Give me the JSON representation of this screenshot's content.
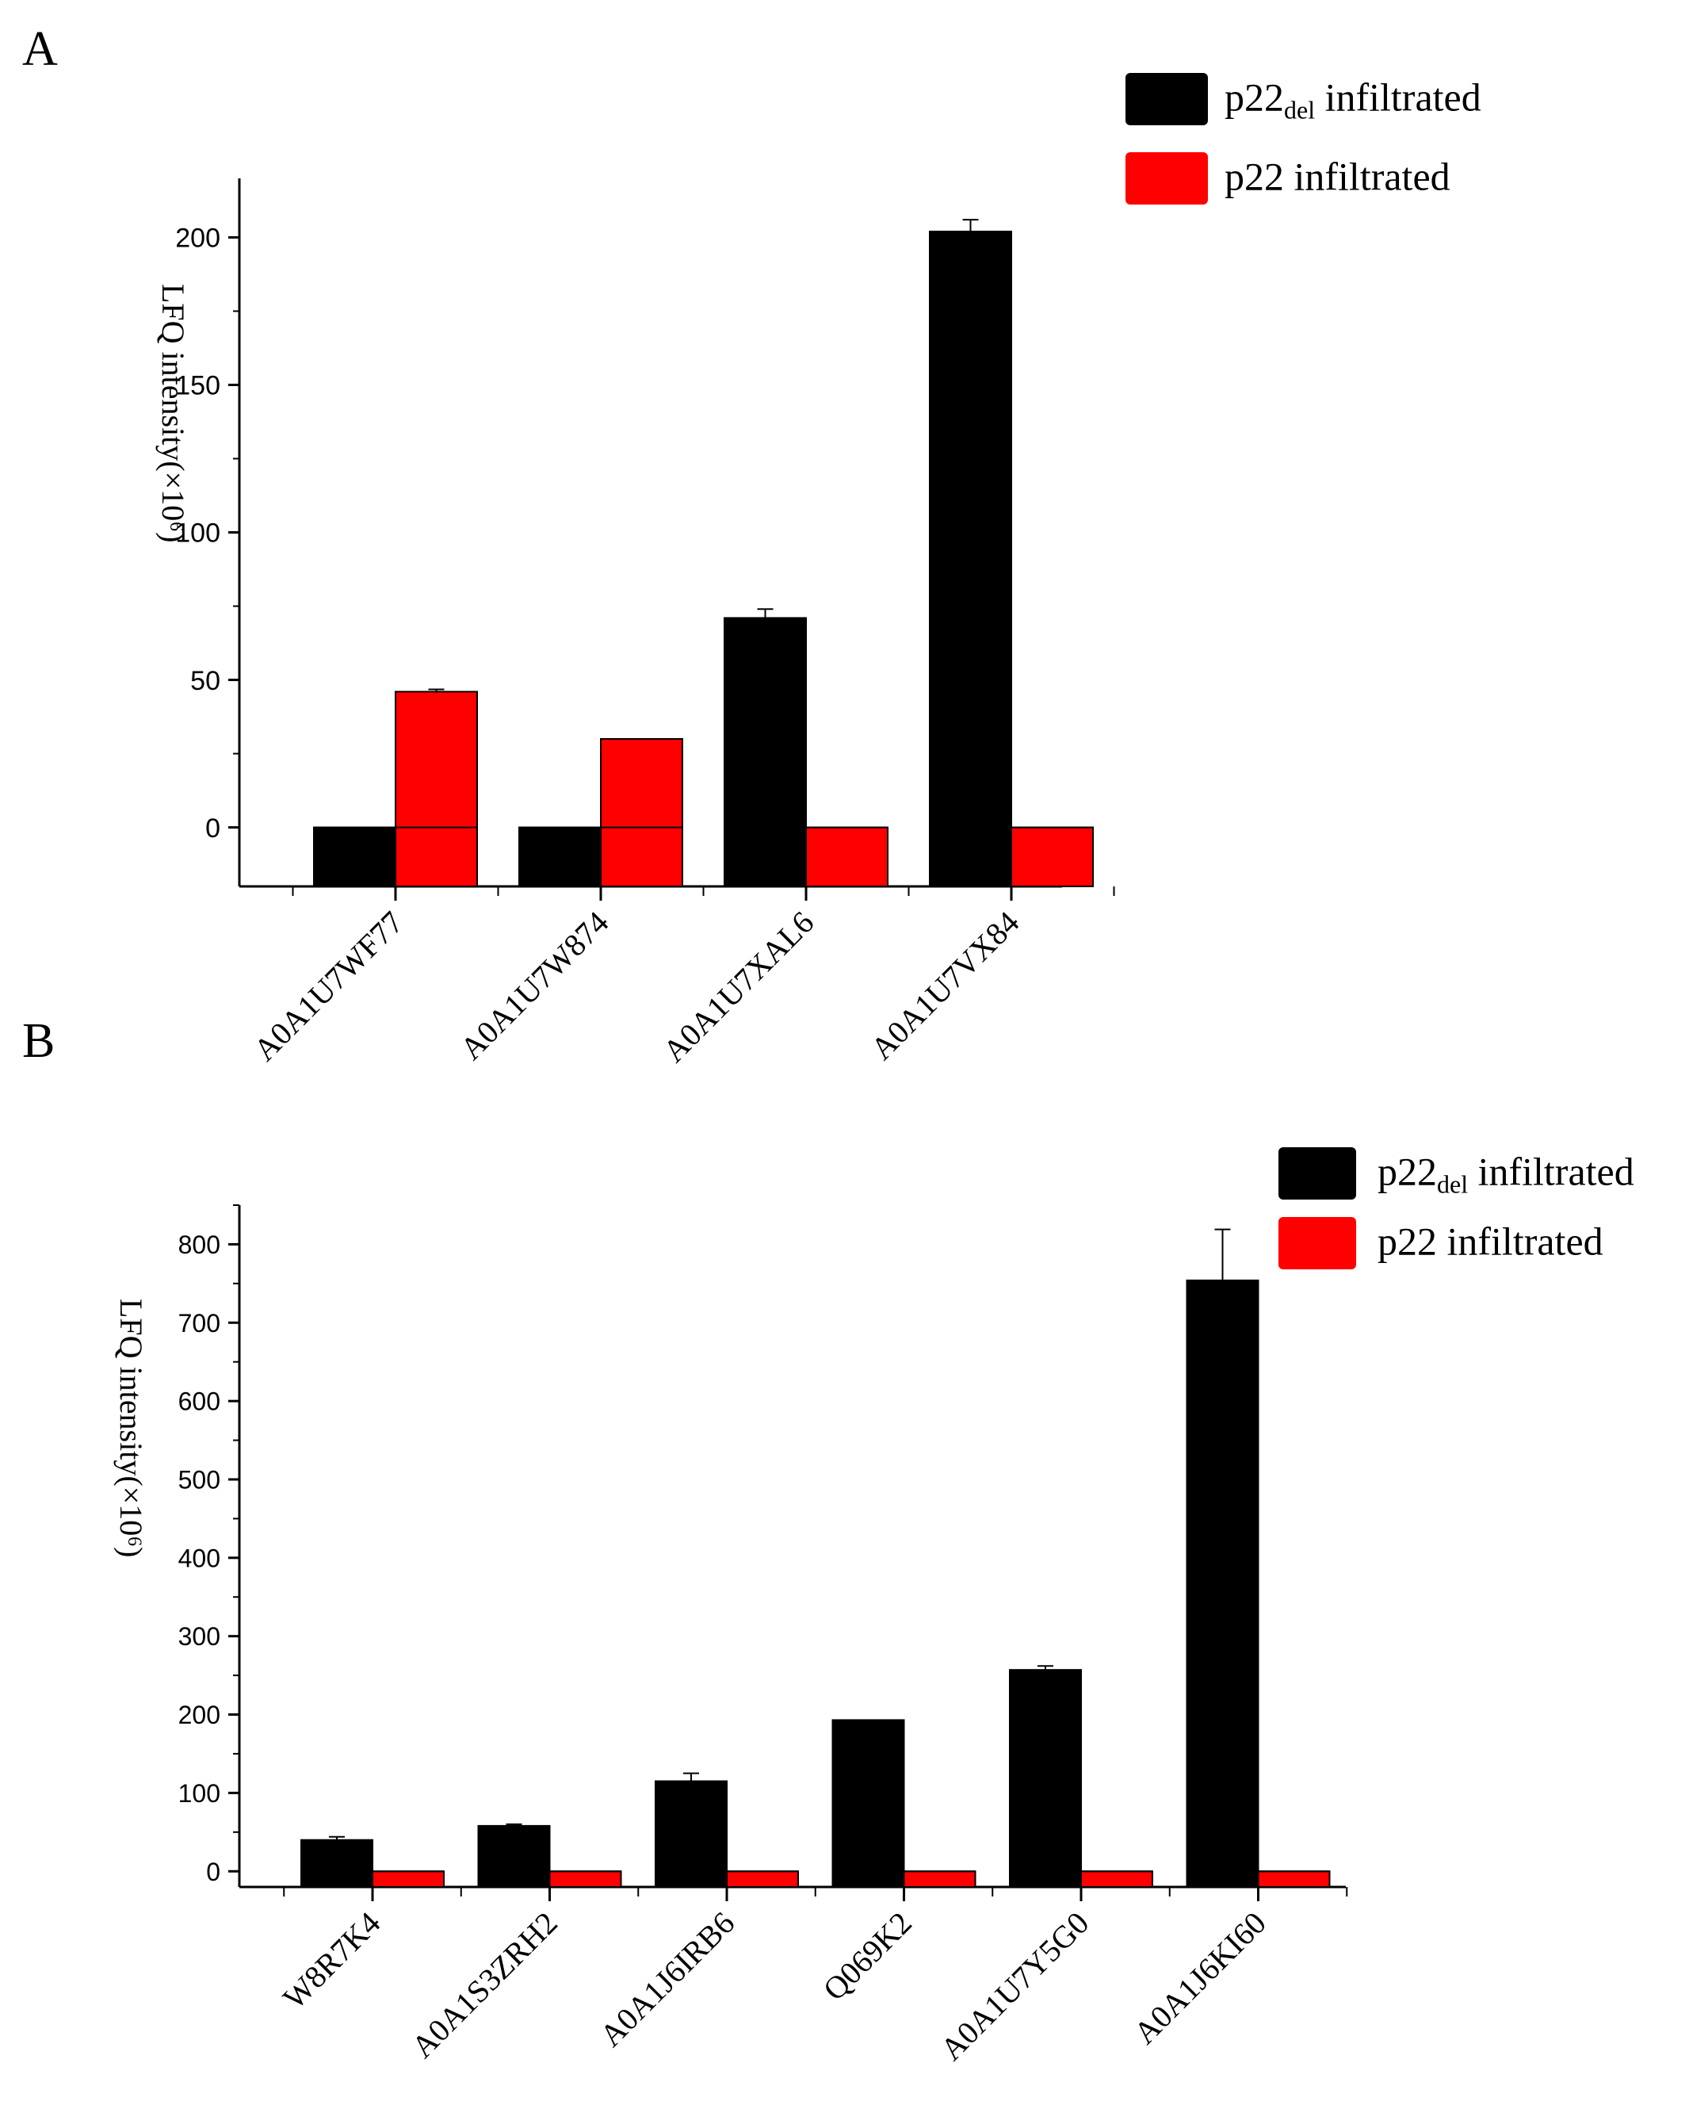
{
  "colors": {
    "series1": "#000000",
    "series2": "#ff0000",
    "axis": "#000000",
    "background": "#ffffff"
  },
  "chart_data": [
    {
      "panel_label": "A",
      "type": "bar",
      "title": "",
      "xlabel": "",
      "ylabel": "LFQ  intensity(×10⁶)",
      "ylim": [
        -20,
        220
      ],
      "yticks": [
        0,
        50,
        100,
        150,
        200
      ],
      "ytick_labels": [
        "0",
        "50",
        "100",
        "150",
        "200"
      ],
      "categories": [
        "A0A1U7WF77",
        "A0A1U7W874",
        "A0A1U7XAL6",
        "A0A1U7VX84"
      ],
      "series": [
        {
          "name": "p22del infiltrated",
          "name_main": "p22",
          "name_sub": "del",
          "name_rest": " infiltrated",
          "color": "#000000",
          "values": [
            0,
            0,
            71,
            202
          ],
          "errors": [
            0,
            0,
            3,
            4
          ]
        },
        {
          "name": "p22 infiltrated",
          "name_main": "p22 infiltrated",
          "name_sub": "",
          "name_rest": "",
          "color": "#ff0000",
          "values": [
            46,
            30,
            0,
            0
          ],
          "errors": [
            0.8,
            0,
            0,
            0
          ]
        }
      ],
      "legend_position": "top-right",
      "grid": false
    },
    {
      "panel_label": "B",
      "type": "bar",
      "title": "",
      "xlabel": "",
      "ylabel": "LFQ  intensity(×10⁶)",
      "ylim": [
        -20,
        850
      ],
      "yticks": [
        0,
        100,
        200,
        300,
        400,
        500,
        600,
        700,
        800
      ],
      "ytick_labels": [
        "0",
        "100",
        "200",
        "300",
        "400",
        "500",
        "600",
        "700",
        "800"
      ],
      "categories": [
        "W8R7K4",
        "A0A1S3ZRH2",
        "A0A1J6IRB6",
        "Q069K2",
        "A0A1U7Y5G0",
        "A0A1J6KI60"
      ],
      "series": [
        {
          "name": "p22del infiltrated",
          "name_main": "p22",
          "name_sub": "del",
          "name_rest": " infiltrated",
          "color": "#000000",
          "values": [
            40,
            58,
            115,
            193,
            257,
            754
          ],
          "errors": [
            4,
            2,
            10,
            0,
            5,
            65
          ]
        },
        {
          "name": "p22 infiltrated",
          "name_main": "p22 infiltrated",
          "name_sub": "",
          "name_rest": "",
          "color": "#ff0000",
          "values": [
            0,
            0,
            0,
            0,
            0,
            0
          ],
          "errors": [
            0,
            0,
            0,
            0,
            0,
            0
          ]
        }
      ],
      "legend_position": "top-right",
      "grid": false
    }
  ]
}
